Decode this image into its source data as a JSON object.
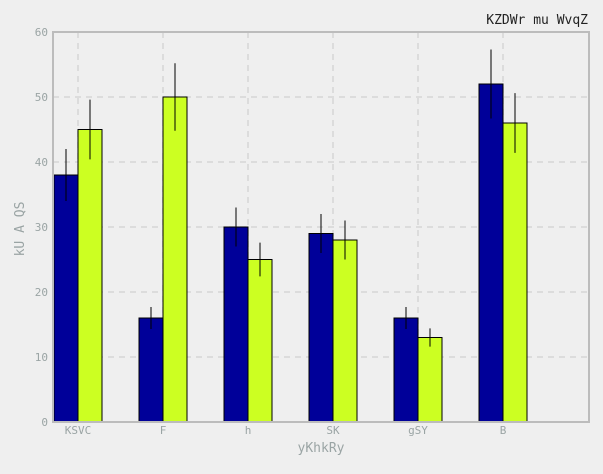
{
  "chart_data": {
    "type": "bar",
    "title": "KZDWr mu WvqZ",
    "xlabel": "yKhkRy",
    "ylabel": "kU A QS",
    "categories": [
      "KSVC",
      "F",
      "h",
      "SK",
      "gSY",
      "B"
    ],
    "ylim": [
      0,
      60
    ],
    "yticks": [
      0,
      10,
      20,
      30,
      40,
      50,
      60
    ],
    "grid": true,
    "series": [
      {
        "color": "#000099",
        "values": [
          38,
          16,
          30,
          29,
          16,
          52
        ],
        "errors": [
          4,
          1.7,
          3,
          3,
          1.7,
          5.3
        ]
      },
      {
        "color": "#ccff22",
        "values": [
          45,
          50,
          25,
          28,
          13,
          46
        ],
        "errors": [
          4.6,
          5.2,
          2.6,
          3,
          1.4,
          4.6
        ]
      }
    ]
  }
}
